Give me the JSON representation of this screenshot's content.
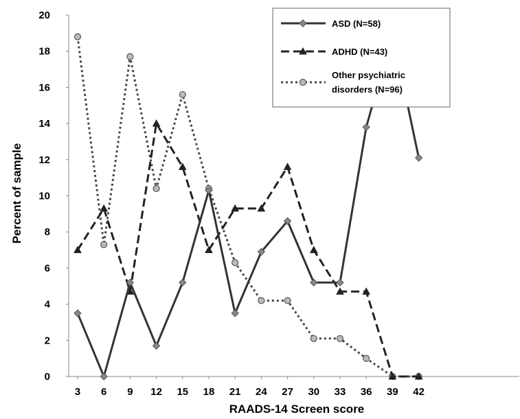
{
  "chart_data": {
    "type": "line",
    "title": "",
    "xlabel": "RAADS-14 Screen score",
    "ylabel": "Percent of sample",
    "x": [
      3,
      6,
      9,
      12,
      15,
      18,
      21,
      24,
      27,
      30,
      33,
      36,
      39,
      42
    ],
    "ylim": [
      0,
      20
    ],
    "yticks": [
      0,
      2,
      4,
      6,
      8,
      10,
      12,
      14,
      16,
      18,
      20
    ],
    "grid": false,
    "legend_position": "top-right",
    "series": [
      {
        "name": "ASD (N=58)",
        "style": "solid",
        "marker": "diamond",
        "color": "#333333",
        "values": [
          3.5,
          0,
          5.2,
          1.7,
          5.2,
          10.3,
          3.5,
          6.9,
          8.6,
          5.2,
          5.2,
          13.8,
          19.0,
          12.1
        ]
      },
      {
        "name": "ADHD (N=43)",
        "style": "dashed",
        "marker": "triangle",
        "color": "#222222",
        "values": [
          7.0,
          9.3,
          4.7,
          14.0,
          11.6,
          7.0,
          9.3,
          9.3,
          11.6,
          7.0,
          4.7,
          4.7,
          0,
          0
        ]
      },
      {
        "name": "Other psychiatric disorders (N=96)",
        "legend_lines": [
          "Other psychiatric",
          "disorders (N=96)"
        ],
        "style": "dotted",
        "marker": "circle",
        "color": "#444444",
        "values": [
          18.8,
          7.3,
          17.7,
          10.4,
          15.6,
          10.4,
          6.3,
          4.2,
          4.2,
          2.1,
          2.1,
          1.0,
          0,
          0
        ]
      }
    ]
  }
}
